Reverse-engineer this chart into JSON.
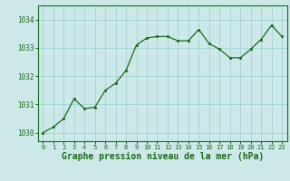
{
  "x": [
    0,
    1,
    2,
    3,
    4,
    5,
    6,
    7,
    8,
    9,
    10,
    11,
    12,
    13,
    14,
    15,
    16,
    17,
    18,
    19,
    20,
    21,
    22,
    23
  ],
  "y": [
    1030.0,
    1030.2,
    1030.5,
    1031.2,
    1030.85,
    1030.9,
    1031.5,
    1031.75,
    1032.2,
    1033.1,
    1033.35,
    1033.4,
    1033.4,
    1033.25,
    1033.25,
    1033.65,
    1033.15,
    1032.95,
    1032.65,
    1032.65,
    1032.95,
    1033.3,
    1033.8,
    1033.4
  ],
  "line_color": "#1a6b1a",
  "marker_color": "#1a6b1a",
  "bg_color": "#cce8e8",
  "grid_color": "#9ecece",
  "axis_color": "#1a6b1a",
  "tick_label_color": "#1a6b1a",
  "xlabel": "Graphe pression niveau de la mer (hPa)",
  "xlabel_color": "#1a6b1a",
  "xlabel_fontsize": 7,
  "yticks": [
    1030,
    1031,
    1032,
    1033,
    1034
  ],
  "ylim": [
    1029.7,
    1034.5
  ],
  "xlim": [
    -0.5,
    23.5
  ],
  "xticks": [
    0,
    1,
    2,
    3,
    4,
    5,
    6,
    7,
    8,
    9,
    10,
    11,
    12,
    13,
    14,
    15,
    16,
    17,
    18,
    19,
    20,
    21,
    22,
    23
  ]
}
